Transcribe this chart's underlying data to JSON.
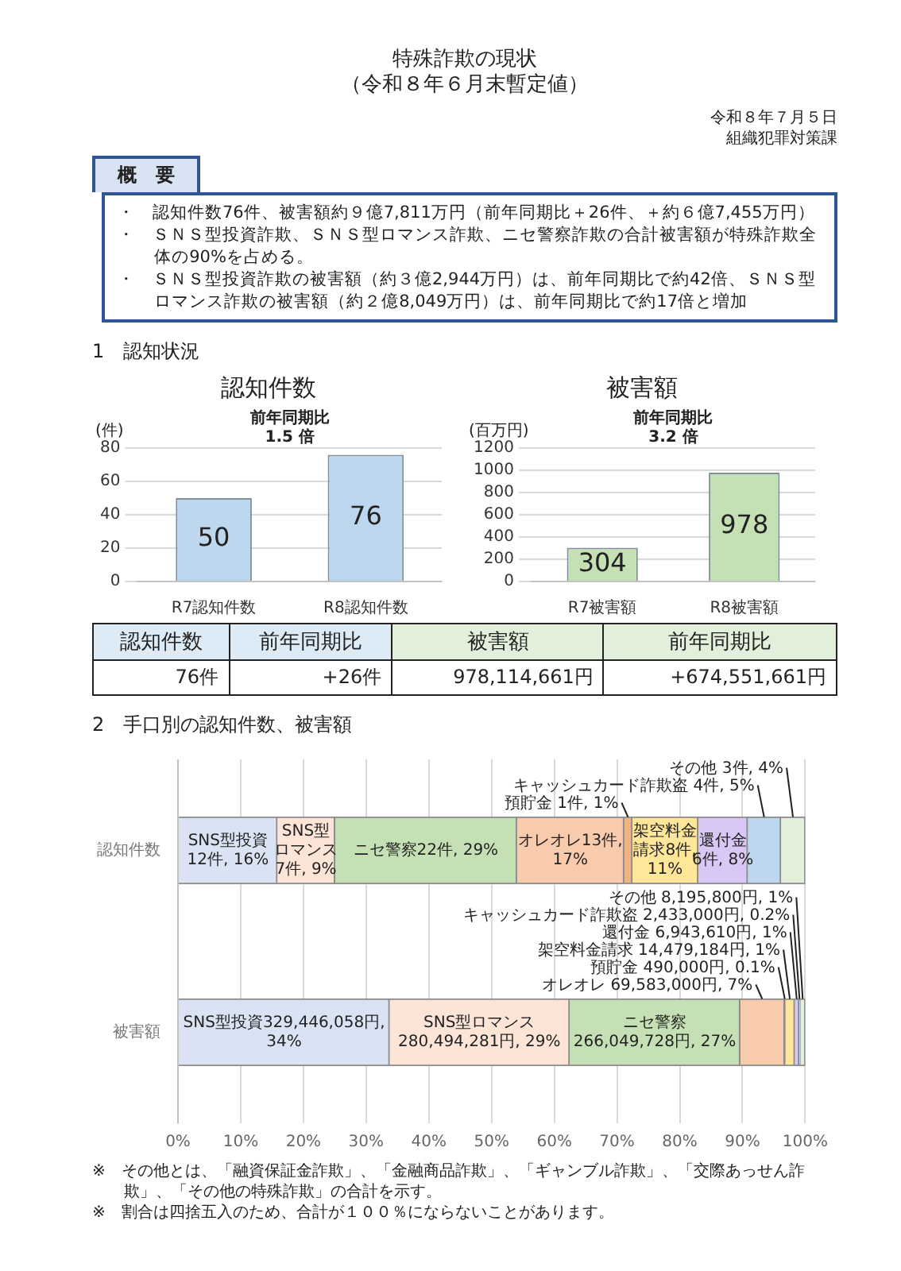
{
  "chart_data": [
    {
      "type": "other",
      "title": "特殊詐欺の現状",
      "subtitle": "（令和８年６月末暫定値）",
      "annotations": [
        "令和８年７月５日",
        "組織犯罪対策課",
        "概　要",
        "・　認知件数76件、被害額約９億7,811万円（前年同期比＋26件、＋約６億7,455万円）",
        "・　ＳＮＳ型投資詐欺、ＳＮＳ型ロマンス詐欺、ニセ警察詐欺の合計被害額が特殊詐欺全体の90%を占める。",
        "・　ＳＮＳ型投資詐欺の被害額（約３億2,944万円）は、前年同期比で約42倍、ＳＮＳ型ロマンス詐欺の被害額（約２億8,049万円）は、前年同期比で約17倍と増加",
        "1　認知状況"
      ]
    },
    {
      "type": "bar",
      "title": "認知件数",
      "ylabel": "(件)",
      "categories": [
        "R7認知件数",
        "R8認知件数"
      ],
      "values": [
        50,
        76
      ],
      "color": "#bdd7ee",
      "ylim": [
        0,
        80
      ],
      "yticks": [
        0,
        20,
        40,
        60,
        80
      ],
      "grid": "y",
      "data_labels": true,
      "annotations": [
        "前年同期比\n1.5 倍"
      ]
    },
    {
      "type": "bar",
      "title": "被害額",
      "ylabel": "(百万円)",
      "categories": [
        "R7被害額",
        "R8被害額"
      ],
      "values": [
        304,
        978
      ],
      "color": "#c5e0b4",
      "ylim": [
        0,
        1200
      ],
      "yticks": [
        0,
        200,
        400,
        600,
        800,
        1000,
        1200
      ],
      "grid": "y",
      "data_labels": true,
      "annotations": [
        "前年同期比\n3.2 倍"
      ]
    },
    {
      "type": "other",
      "categories": [
        "認知件数",
        "前年同期比",
        "被害額",
        "前年同期比"
      ],
      "colors": [
        "#ddebf7",
        "#ddebf7",
        "#e2efda",
        "#e2efda"
      ],
      "annotations": [
        "76件",
        "+26件",
        "978,114,661円",
        "+674,551,661円"
      ]
    },
    {
      "type": "bar",
      "orientation": "horizontal",
      "stacked": true,
      "title": "2　手口別の認知件数、被害額",
      "categories": [
        "認知件数",
        "被害額"
      ],
      "xlim": [
        0,
        100
      ],
      "xticks": [
        {
          "value": 0,
          "label": "0%"
        },
        {
          "value": 10,
          "label": "10%"
        },
        {
          "value": 20,
          "label": "20%"
        },
        {
          "value": 30,
          "label": "30%"
        },
        {
          "value": 40,
          "label": "40%"
        },
        {
          "value": 50,
          "label": "50%"
        },
        {
          "value": 60,
          "label": "60%"
        },
        {
          "value": 70,
          "label": "70%"
        },
        {
          "value": 80,
          "label": "80%"
        },
        {
          "value": 90,
          "label": "90%"
        },
        {
          "value": 100,
          "label": "100%"
        }
      ],
      "grid": "x",
      "series": [
        {
          "color": "#dae3f3",
          "values": [
            15.8,
            33.7
          ],
          "value_labels": [
            "SNS型投資12件, 16%",
            "SNS型投資329,446,058円, 34%"
          ]
        },
        {
          "color": "#fce4d6",
          "values": [
            9.2,
            28.7
          ],
          "value_labels": [
            "SNS型ロマンス7件, 9%",
            "SNS型ロマンス280,494,281円, 29%"
          ]
        },
        {
          "color": "#c5e0b4",
          "values": [
            29.0,
            27.2
          ],
          "value_labels": [
            "ニセ警察22件, 29%",
            "ニセ警察266,049,728円, 27%"
          ]
        },
        {
          "color": "#f8cbad",
          "values": [
            17.1,
            7.1
          ],
          "value_labels": [
            "オレオレ13件, 17%",
            "オレオレ 69,583,000円, 7%"
          ]
        },
        {
          "color": "#f4b183",
          "values": [
            1.3,
            0.1
          ],
          "value_labels": [
            "預貯金 1件, 1%",
            "預貯金 490,000円, 0.1%"
          ]
        },
        {
          "color": "#ffe699",
          "values": [
            10.5,
            1.5
          ],
          "value_labels": [
            "架空料金請求8件, 11%",
            "架空料金請求 14,479,184円, 1%"
          ]
        },
        {
          "color": "#d9c8f5",
          "values": [
            7.9,
            0.7
          ],
          "value_labels": [
            "還付金6件, 8%",
            "還付金 6,943,610円, 1%"
          ]
        },
        {
          "color": "#bdd7ee",
          "values": [
            5.3,
            0.2
          ],
          "value_labels": [
            "キャッシュカード詐欺盗 4件, 5%",
            "キャッシュカード詐欺盗 2,433,000円, 0.2%"
          ]
        },
        {
          "color": "#e2f0d9",
          "values": [
            3.9,
            0.8
          ],
          "value_labels": [
            "その他 3件, 4%",
            "その他 8,195,800円, 1%"
          ]
        }
      ],
      "annotations": [
        "※　その他とは、「融資保証金詐欺」、「金融商品詐欺」、「ギャンブル詐欺」、「交際あっせん詐欺」、「その他の特殊詐欺」の合計を示す。",
        "※　割合は四捨五入のため、合計が１００％にならないことがあります。"
      ]
    }
  ]
}
